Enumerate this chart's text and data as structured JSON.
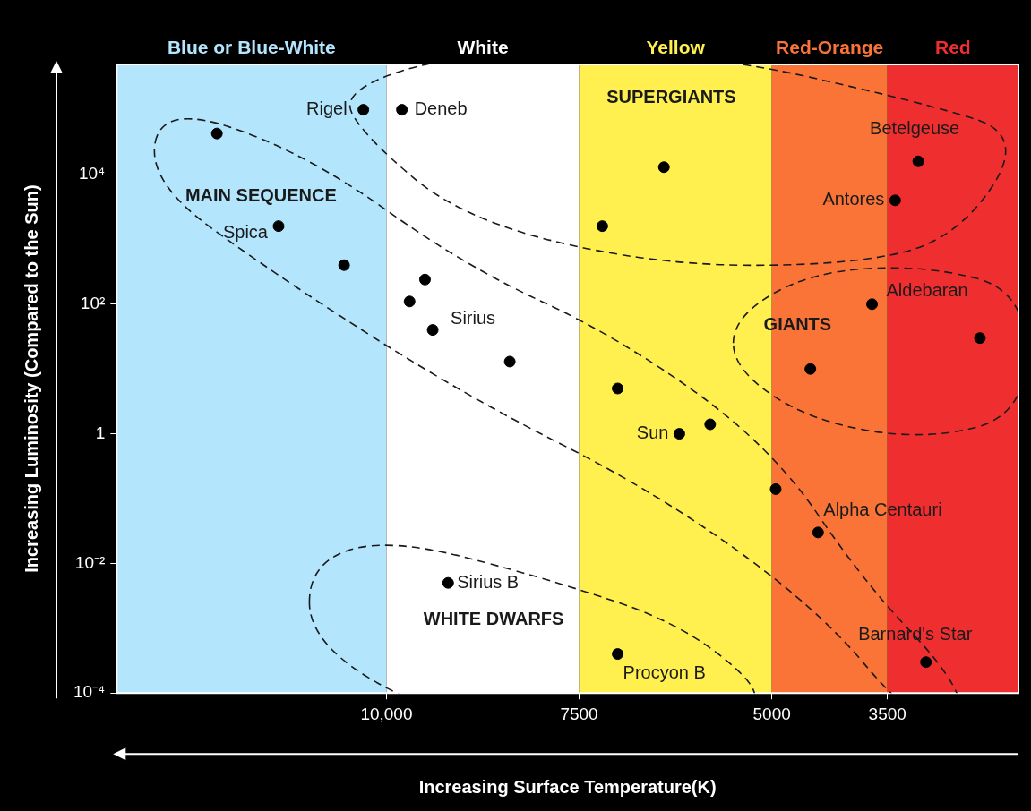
{
  "chart_data": {
    "type": "scatter",
    "xlabel": "Increasing Surface Temperature(K)",
    "ylabel": "Increasing Luminosity (Compared to the Sun)",
    "x": [
      12200,
      10300,
      9800,
      11400,
      10550,
      9500,
      9700,
      9400,
      8400,
      6400,
      7200,
      7000,
      6200,
      5800,
      4950,
      4400,
      4500,
      3700,
      3400,
      3100,
      2300,
      3000,
      9200,
      7000
    ],
    "values": [
      43000,
      100000,
      100000,
      1600,
      400,
      240,
      110,
      40,
      13,
      13000,
      1600,
      5,
      1,
      1.4,
      0.14,
      0.03,
      10,
      100,
      4000,
      16000,
      30,
      0.0003,
      0.005,
      0.0004
    ],
    "color": "#000000",
    "marker": "circle",
    "log": "y",
    "grid": false,
    "legend": false,
    "xlim": [
      13500,
      1800
    ],
    "xticks": [
      {
        "value": 10000,
        "label": "10,000"
      },
      7500,
      5000,
      3500
    ],
    "ylim": [
      0.0001,
      500000
    ],
    "yticks": [
      {
        "value": 0.0001,
        "label": "10⁻⁴"
      },
      {
        "value": 0.01,
        "label": "10⁻²"
      },
      1,
      {
        "value": 100,
        "label": "10²"
      },
      {
        "value": 10000,
        "label": "10⁴"
      }
    ],
    "bands": [
      {
        "axis": "x",
        "from": 13500,
        "to": 10000,
        "label": "Blue or Blue-White",
        "color": "#b3e5fc"
      },
      {
        "axis": "x",
        "from": 10000,
        "to": 7500,
        "label": "White",
        "color": "#ffffff"
      },
      {
        "axis": "x",
        "from": 7500,
        "to": 5000,
        "label": "Yellow",
        "color": "#fff04f"
      },
      {
        "axis": "x",
        "from": 5000,
        "to": 3500,
        "label": "Red-Orange",
        "color": "#fa7438"
      },
      {
        "axis": "x",
        "from": 3500,
        "to": 1800,
        "label": "Red",
        "color": "#ef2f2f"
      }
    ],
    "annotations": [
      "MAIN SEQUENCE",
      "SUPERGIANTS",
      "GIANTS",
      "WHITE DWARFS",
      {
        "text": "Rigel",
        "x": 10300,
        "y": 100000
      },
      {
        "text": "Deneb",
        "x": 9800,
        "y": 100000
      },
      {
        "text": "Spica",
        "x": 11400,
        "y": 1600
      },
      {
        "text": "Sirius",
        "x": 9400,
        "y": 40
      },
      {
        "text": "Sun",
        "x": 6200,
        "y": 1
      },
      {
        "text": "Alpha Centauri",
        "x": 4400,
        "y": 0.03
      },
      {
        "text": "Aldebaran",
        "x": 3700,
        "y": 100
      },
      {
        "text": "Antores",
        "x": 3400,
        "y": 4000
      },
      {
        "text": "Betelgeuse",
        "x": 3100,
        "y": 16000
      },
      {
        "text": "Barnard's Star",
        "x": 3000,
        "y": 0.0003
      },
      {
        "text": "Sirius B",
        "x": 9200,
        "y": 0.005
      },
      {
        "text": "Procyon B",
        "x": 7000,
        "y": 0.0004
      }
    ]
  }
}
